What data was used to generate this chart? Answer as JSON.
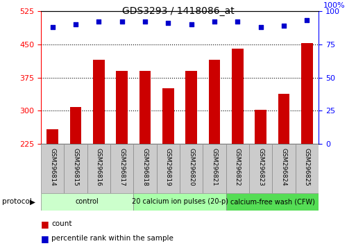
{
  "title": "GDS3293 / 1418086_at",
  "samples": [
    "GSM296814",
    "GSM296815",
    "GSM296816",
    "GSM296817",
    "GSM296818",
    "GSM296819",
    "GSM296820",
    "GSM296821",
    "GSM296822",
    "GSM296823",
    "GSM296824",
    "GSM296825"
  ],
  "counts": [
    258,
    308,
    415,
    390,
    390,
    350,
    390,
    415,
    440,
    302,
    338,
    452
  ],
  "percentile_ranks": [
    88,
    90,
    92,
    92,
    92,
    91,
    90,
    92,
    92,
    88,
    89,
    93
  ],
  "bar_color": "#cc0000",
  "dot_color": "#0000cc",
  "ylim_left": [
    225,
    525
  ],
  "ylim_right": [
    0,
    100
  ],
  "yticks_left": [
    225,
    300,
    375,
    450,
    525
  ],
  "yticks_right": [
    0,
    25,
    50,
    75,
    100
  ],
  "hgrid_values": [
    300,
    375,
    450
  ],
  "protocol_groups": [
    {
      "label": "control",
      "start": 0,
      "end": 3,
      "color": "#ccffcc"
    },
    {
      "label": "20 calcium ion pulses (20-p)",
      "start": 4,
      "end": 7,
      "color": "#aaffaa"
    },
    {
      "label": "calcium-free wash (CFW)",
      "start": 8,
      "end": 11,
      "color": "#55dd55"
    }
  ],
  "protocol_label": "protocol",
  "legend_count_label": "count",
  "legend_pct_label": "percentile rank within the sample",
  "label_area_color": "#cccccc",
  "bar_width": 0.5
}
